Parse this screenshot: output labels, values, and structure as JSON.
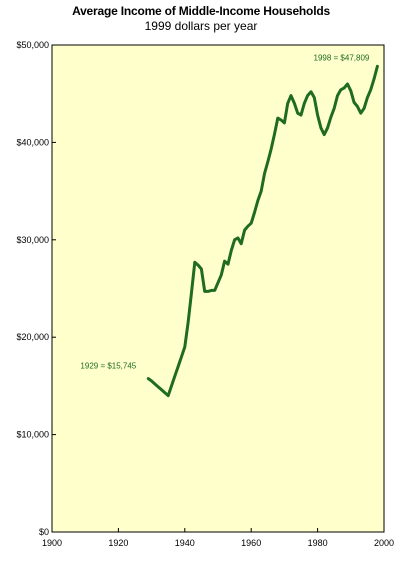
{
  "chart_data": {
    "type": "line",
    "title": "Average Income of Middle-Income Households",
    "subtitle": "1999 dollars per year",
    "xlabel": "",
    "ylabel": "",
    "xlim": [
      1900,
      2000
    ],
    "ylim": [
      0,
      50000
    ],
    "x_ticks": [
      1900,
      1920,
      1940,
      1960,
      1980,
      2000
    ],
    "x_tick_labels": [
      "1900",
      "1920",
      "1940",
      "1960",
      "1980",
      "2000"
    ],
    "y_ticks": [
      0,
      10000,
      20000,
      30000,
      40000,
      50000
    ],
    "y_tick_labels": [
      "$0",
      "$10,000",
      "$20,000",
      "$30,000",
      "$40,000",
      "$50,000"
    ],
    "grid": false,
    "background_color": "#ffffcc",
    "series": [
      {
        "color": "#1f6b1f",
        "x": [
          1929,
          1930,
          1931,
          1932,
          1933,
          1934,
          1935,
          1936,
          1937,
          1938,
          1939,
          1940,
          1941,
          1942,
          1943,
          1944,
          1945,
          1946,
          1947,
          1948,
          1949,
          1950,
          1951,
          1952,
          1953,
          1954,
          1955,
          1956,
          1957,
          1958,
          1959,
          1960,
          1961,
          1962,
          1963,
          1964,
          1965,
          1966,
          1967,
          1968,
          1969,
          1970,
          1971,
          1972,
          1973,
          1974,
          1975,
          1976,
          1977,
          1978,
          1979,
          1980,
          1981,
          1982,
          1983,
          1984,
          1985,
          1986,
          1987,
          1988,
          1989,
          1990,
          1991,
          1992,
          1993,
          1994,
          1995,
          1996,
          1997,
          1998
        ],
        "y": [
          15745,
          15500,
          15200,
          14900,
          14600,
          14300,
          14000,
          15000,
          16000,
          17000,
          18000,
          19000,
          21500,
          24500,
          27700,
          27400,
          27000,
          24700,
          24700,
          24800,
          24800,
          25600,
          26400,
          27800,
          27500,
          28900,
          30000,
          30200,
          29600,
          31000,
          31400,
          31700,
          32800,
          34000,
          35000,
          36800,
          38000,
          39300,
          40800,
          42500,
          42300,
          42000,
          44000,
          44800,
          44000,
          43000,
          42800,
          44000,
          44800,
          45200,
          44600,
          42800,
          41500,
          40800,
          41500,
          42600,
          43500,
          44800,
          45400,
          45600,
          46000,
          45300,
          44100,
          43700,
          43000,
          43500,
          44600,
          45400,
          46500,
          47809
        ]
      }
    ],
    "annotations": [
      {
        "text": "1929  =  $15,745",
        "x": 1929,
        "y": 15745,
        "color": "#1f6b1f"
      },
      {
        "text": "1998  =  $47,809",
        "x": 1998,
        "y": 47809,
        "color": "#1f6b1f"
      }
    ]
  }
}
